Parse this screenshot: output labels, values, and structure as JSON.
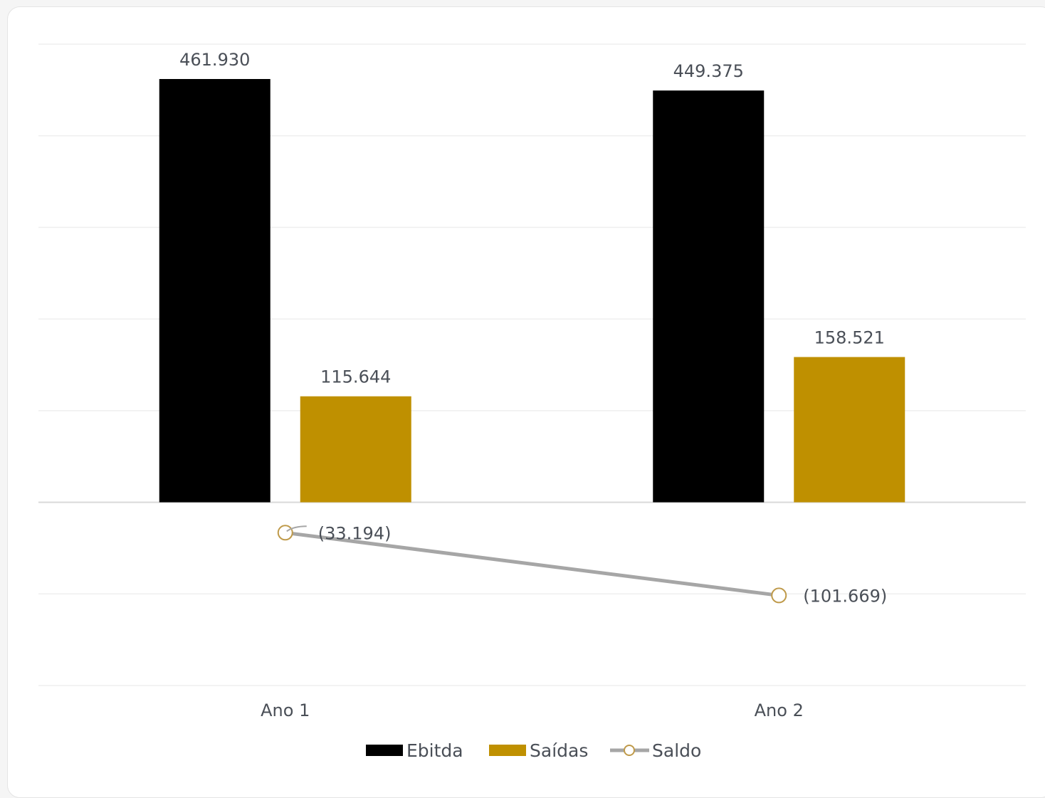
{
  "chart_data": {
    "type": "bar",
    "categories": [
      "Ano 1",
      "Ano 2"
    ],
    "series": [
      {
        "name": "Ebitda",
        "kind": "bar",
        "color": "#000000",
        "values": [
          461930,
          449375
        ],
        "labels": [
          "461.930",
          "449.375"
        ]
      },
      {
        "name": "Saídas",
        "kind": "bar",
        "color": "#BF9000",
        "values": [
          115644,
          158521
        ],
        "labels": [
          "115.644",
          "158.521"
        ]
      },
      {
        "name": "Saldo",
        "kind": "line",
        "color": "#A6A6A6",
        "marker_color": "#BF9A4A",
        "values": [
          -33194,
          -101669
        ],
        "labels": [
          "(33.194)",
          "(101.669)"
        ]
      }
    ],
    "ylim": [
      -200000,
      500000
    ],
    "grid": true,
    "legend": "bottom",
    "axis_labels_visible": false
  }
}
